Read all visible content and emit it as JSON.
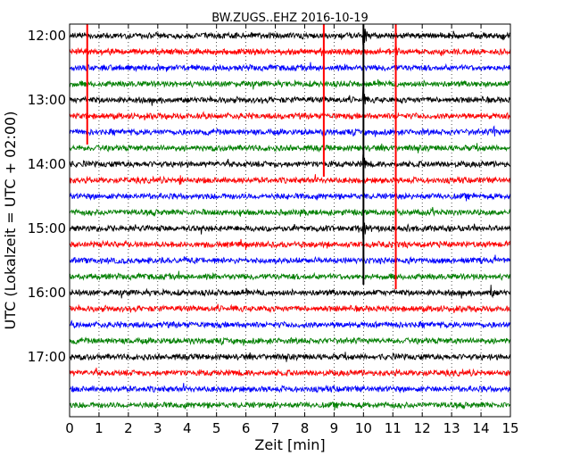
{
  "chart_data": {
    "type": "line",
    "title": "BW.ZUGS..EHZ 2016-10-19",
    "xlabel": "Zeit  [min]",
    "ylabel": "UTC (Lokalzeit = UTC + 02:00)",
    "xlim": [
      0,
      15
    ],
    "x_ticks": [
      "0",
      "1",
      "2",
      "3",
      "4",
      "5",
      "6",
      "7",
      "8",
      "9",
      "10",
      "11",
      "12",
      "13",
      "14",
      "15"
    ],
    "y_ticks": [
      "12:00",
      "13:00",
      "14:00",
      "15:00",
      "16:00",
      "17:00"
    ],
    "grid": true,
    "trace_start_hour": "12:00",
    "trace_interval_minutes": 15,
    "trace_count": 24,
    "colors": {
      "cycle": [
        "#000000",
        "#ff0000",
        "#0000ff",
        "#008000"
      ],
      "event": "#ff0000",
      "frame": "#000000",
      "grid": "#000000"
    },
    "event_markers_red": [
      {
        "x_min": 0.6,
        "from": "12:00",
        "to": "13:45"
      },
      {
        "x_min": 8.65,
        "from": "12:00",
        "to": "14:15"
      },
      {
        "x_min": 11.1,
        "from": "12:00",
        "to": "16:00"
      }
    ],
    "signals": [
      {
        "trace": 0,
        "x_min": 10.0,
        "amplitude": "large"
      },
      {
        "trace": 1,
        "x_min": 11.1,
        "amplitude": "medium"
      },
      {
        "trace": 4,
        "x_min": 10.0,
        "amplitude": "medium"
      },
      {
        "trace": 6,
        "x_min": 14.45,
        "amplitude": "small"
      },
      {
        "trace": 8,
        "x_min": 10.0,
        "amplitude": "medium"
      },
      {
        "trace": 9,
        "x_min": 3.75,
        "amplitude": "small"
      },
      {
        "trace": 12,
        "x_min": 10.0,
        "amplitude": "large"
      },
      {
        "trace": 12,
        "x_min": 11.5,
        "amplitude": "small"
      },
      {
        "trace": 16,
        "x_min": 14.35,
        "amplitude": "small"
      }
    ]
  }
}
